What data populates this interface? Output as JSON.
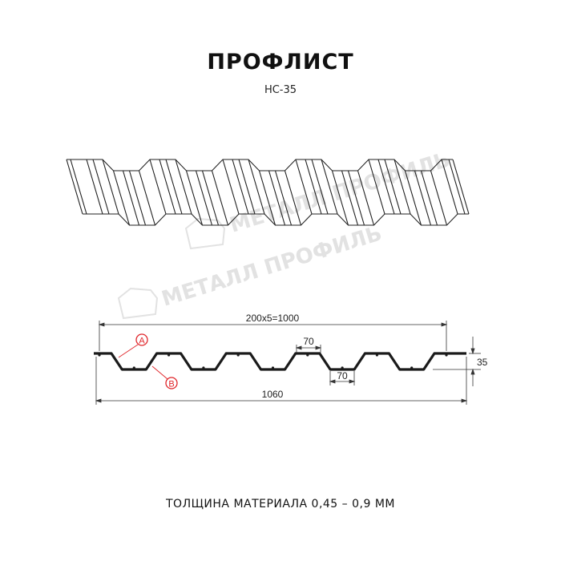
{
  "title": "ПРОФЛИСТ",
  "subtitle": "НС-35",
  "watermark": "МЕТАЛЛ ПРОФИЛЬ",
  "dimensions": {
    "pitch_total": "200x5=1000",
    "top_width": "70",
    "bottom_width": "70",
    "height": "35",
    "full_width": "1060"
  },
  "markers": {
    "a": "A",
    "b": "B"
  },
  "footer": "ТОЛЩИНА МАТЕРИАЛА 0,45 – 0,9 ММ",
  "colors": {
    "profile": "#1a1a1a",
    "marker": "#e0262b",
    "watermark": "#e2e2e2"
  }
}
